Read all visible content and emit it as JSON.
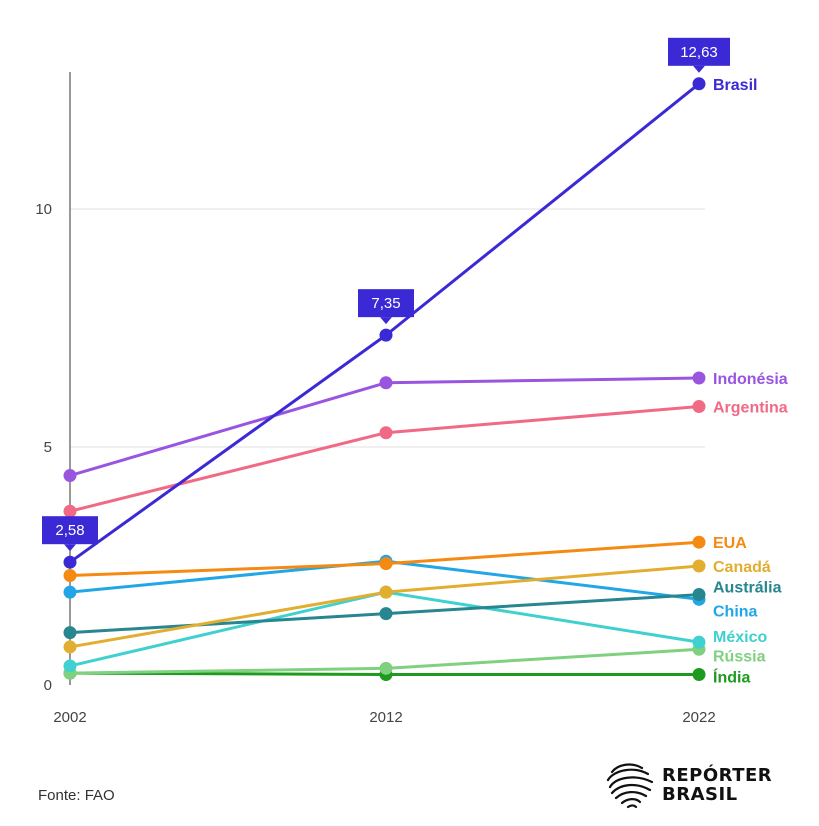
{
  "chart_data": {
    "type": "line",
    "x": [
      "2002",
      "2012",
      "2022"
    ],
    "ylim": [
      0,
      13
    ],
    "yticks": [
      0,
      5,
      10
    ],
    "grid": "horizontal",
    "series": [
      {
        "name": "Brasil",
        "color": "#3b29d6",
        "values": [
          2.58,
          7.35,
          12.63
        ],
        "callouts": [
          "2,58",
          "7,35",
          "12,63"
        ]
      },
      {
        "name": "Indonésia",
        "color": "#9a55e0",
        "values": [
          4.4,
          6.35,
          6.45
        ]
      },
      {
        "name": "Argentina",
        "color": "#f06a85",
        "values": [
          3.65,
          5.3,
          5.85
        ]
      },
      {
        "name": "EUA",
        "color": "#f58a12",
        "values": [
          2.3,
          2.55,
          3.0
        ]
      },
      {
        "name": "Canadá",
        "color": "#e2ae30",
        "values": [
          0.8,
          1.95,
          2.5
        ]
      },
      {
        "name": "Austrália",
        "color": "#27868f",
        "values": [
          1.1,
          1.5,
          1.9
        ]
      },
      {
        "name": "China",
        "color": "#23a6e6",
        "values": [
          1.95,
          2.6,
          1.8
        ]
      },
      {
        "name": "México",
        "color": "#3fd0d0",
        "values": [
          0.4,
          1.95,
          0.9
        ]
      },
      {
        "name": "Rússia",
        "color": "#7fd07f",
        "values": [
          0.25,
          0.35,
          0.75
        ]
      },
      {
        "name": "Índia",
        "color": "#1e9a1e",
        "values": [
          0.25,
          0.22,
          0.22
        ]
      }
    ]
  },
  "source": "Fonte: FAO",
  "logo": {
    "line1": "REPÓRTER",
    "line2": "BRASIL"
  }
}
